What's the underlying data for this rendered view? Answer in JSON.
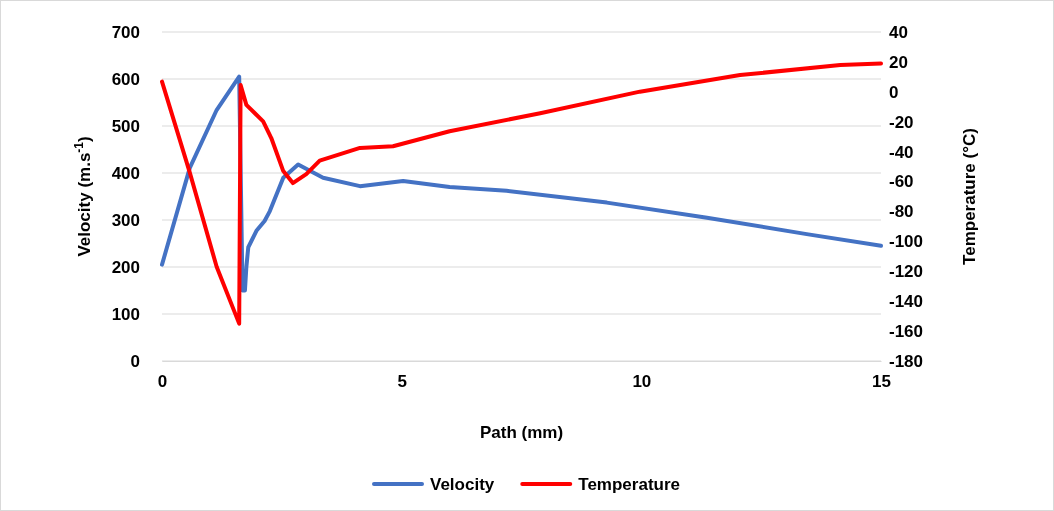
{
  "chart_data": {
    "type": "line",
    "xlabel": "Path (mm)",
    "ylabel": "Velocity (m.s$^{-1}$)",
    "y2label": "Temperature (°C)",
    "xlim": [
      0,
      15
    ],
    "xticks": [
      0,
      5,
      10,
      15
    ],
    "ylim": [
      0,
      700
    ],
    "yticks": [
      0,
      100,
      200,
      300,
      400,
      500,
      600,
      700
    ],
    "y2lim": [
      -180,
      40
    ],
    "y2ticks": [
      -180,
      -160,
      -140,
      -120,
      -100,
      -80,
      -60,
      -40,
      -20,
      0,
      20,
      40
    ],
    "grid": "y",
    "legend": "bottom",
    "line_style": "solid",
    "marker": "none",
    "series": [
      {
        "name": "Velocity",
        "color": "#4472c4",
        "x": [
          0,
          0.58,
          1.14,
          1.61,
          1.68,
          1.73,
          1.76,
          1.8,
          1.97,
          2.14,
          2.25,
          2.53,
          2.84,
          3.36,
          4.13,
          5.03,
          6.0,
          7.19,
          9.28,
          11.37,
          13.45,
          15
        ],
        "values": [
          205,
          411,
          534,
          605,
          150,
          150,
          200,
          242,
          277,
          298,
          319,
          390,
          418,
          390,
          372,
          383,
          370,
          362,
          337,
          305,
          270,
          245
        ]
      },
      {
        "name": "Temperature",
        "color": "#ff0000",
        "axis": "y2",
        "x": [
          0,
          0.58,
          1.14,
          1.61,
          1.64,
          1.76,
          2.11,
          2.28,
          2.53,
          2.73,
          3.01,
          3.29,
          4.13,
          4.82,
          6.0,
          7.89,
          9.97,
          12.06,
          14.15,
          15
        ],
        "values": [
          6.8,
          -54,
          -117,
          -155,
          4.6,
          -8.7,
          -19.8,
          -30.9,
          -53,
          -61,
          -55,
          -46,
          -37.5,
          -36.4,
          -26.4,
          -14.3,
          0.1,
          11.2,
          17.9,
          19
        ]
      }
    ]
  }
}
